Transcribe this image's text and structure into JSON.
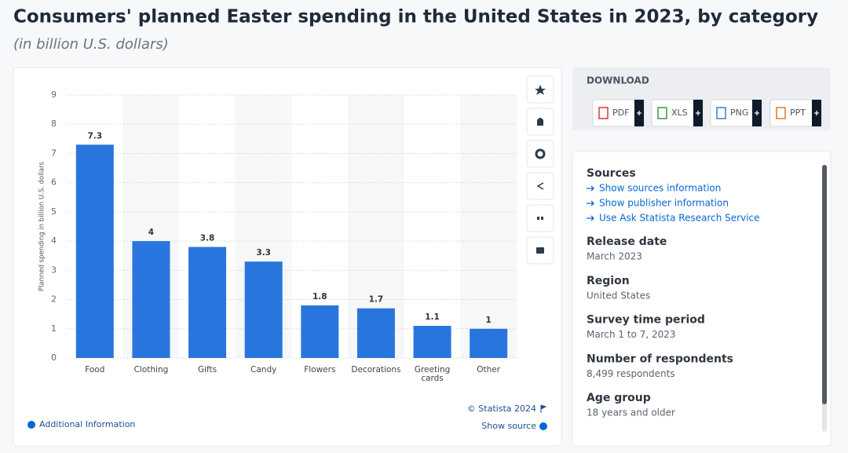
{
  "page": {
    "title": "Consumers' planned Easter spending in the United States in 2023, by category",
    "subtitle": "(in billion U.S. dollars)",
    "footer": {
      "credit": "© Statista 2024",
      "additional": "Additional Information",
      "show_source": "Show source"
    },
    "download": {
      "label": "DOWNLOAD",
      "formats": [
        "PDF",
        "XLS",
        "PNG",
        "PPT"
      ]
    },
    "details": {
      "sources_heading": "Sources",
      "links": [
        "Show sources information",
        "Show publisher information",
        "Use Ask Statista Research Service"
      ],
      "items": [
        {
          "heading": "Release date",
          "value": "March 2023"
        },
        {
          "heading": "Region",
          "value": "United States"
        },
        {
          "heading": "Survey time period",
          "value": "March 1 to 7, 2023"
        },
        {
          "heading": "Number of respondents",
          "value": "8,499 respondents"
        },
        {
          "heading": "Age group",
          "value": "18 years and older"
        }
      ]
    }
  },
  "chart_data": {
    "type": "bar",
    "y_label": "Planned spending in billion U.S. dollars",
    "categories": [
      "Food",
      "Clothing",
      "Gifts",
      "Candy",
      "Flowers",
      "Decorations",
      "Greeting cards",
      "Other"
    ],
    "values": [
      7.3,
      4,
      3.8,
      3.3,
      1.8,
      1.7,
      1.1,
      1
    ],
    "color": "#2876dd",
    "ylim": [
      0,
      9
    ],
    "yticks": [
      0,
      1,
      2,
      3,
      4,
      5,
      6,
      7,
      8,
      9
    ],
    "grid": true
  }
}
